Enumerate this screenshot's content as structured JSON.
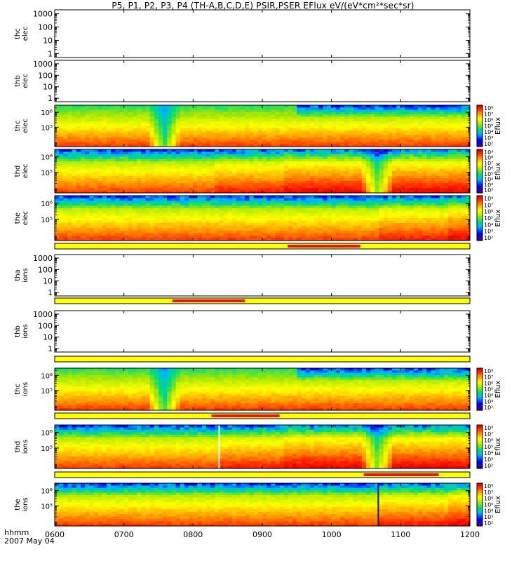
{
  "title": "P5, P1, P2, P3, P4 (TH-A,B,C,D,E) PSIR,PSER EFlux eV/(eV*cm²*sec*sr)",
  "footer": {
    "time_format": "hhmm",
    "date": "2007 May 04"
  },
  "colors": {
    "status_ok": "#ffff00",
    "status_flag": "#e8102a",
    "line": "#000000"
  },
  "chart_data": {
    "type": "heatmap",
    "title": "P5, P1, P2, P3, P4 (TH-A,B,C,D,E) PSIR,PSER EFlux eV/(eV*cm²*sec*sr)",
    "x_axis": {
      "range": [
        "0600",
        "1200"
      ],
      "ticks": [
        "0600",
        "0700",
        "0800",
        "0900",
        "1000",
        "1100",
        "1200"
      ],
      "label": "hhmm",
      "date": "2007 May 04"
    },
    "colorbar_label": "Eflux",
    "panels": [
      {
        "kind": "empty",
        "label": [
          "thc",
          "elec"
        ],
        "yticks": [
          "1000",
          "100",
          "10",
          "1"
        ],
        "ylim": [
          0.5,
          2000
        ]
      },
      {
        "kind": "empty",
        "label": [
          "thb",
          "elec"
        ],
        "yticks": [
          "1000",
          "100",
          "10",
          "1"
        ],
        "ylim": [
          0.5,
          2000
        ]
      },
      {
        "kind": "spectrogram",
        "label": [
          "thc",
          "elec"
        ],
        "yticks": [
          "10⁶",
          "10⁵"
        ],
        "ylim": [
          5000,
          3000000
        ],
        "colorbar_ticks": [
          "10⁸",
          "10⁷",
          "10⁶",
          "10⁵",
          "10⁴",
          "10³",
          "10²"
        ],
        "crange": [
          100,
          100000000
        ],
        "features": {
          "dips": [
            {
              "t": "0735",
              "width_min": 8
            }
          ],
          "speckle_from": "0930",
          "steps": []
        }
      },
      {
        "kind": "spectrogram",
        "label": [
          "thd",
          "elec"
        ],
        "yticks": [
          "10⁶",
          "10⁵"
        ],
        "ylim": [
          5000,
          3000000
        ],
        "colorbar_ticks": [
          "10⁹",
          "10⁸",
          "10⁷",
          "10⁶",
          "10⁵",
          "10⁴",
          "10³",
          "10²"
        ],
        "crange": [
          100,
          1000000000
        ],
        "features": {
          "dips": [
            {
              "t": "1040",
              "width_min": 8
            }
          ],
          "speckle_from": "0600",
          "steps": [
            "0820",
            "0920"
          ]
        }
      },
      {
        "kind": "spectrogram",
        "label": [
          "the",
          "elec"
        ],
        "yticks": [
          "10⁶",
          "10⁵"
        ],
        "ylim": [
          5000,
          3000000
        ],
        "colorbar_ticks": [
          "10⁸",
          "10⁷",
          "10⁶",
          "10⁵",
          "10⁴",
          "10³",
          "10²"
        ],
        "crange": [
          100,
          100000000
        ],
        "features": {
          "dips": [],
          "speckle_from": "0600",
          "steps": [
            "1040",
            "1140"
          ]
        }
      },
      {
        "kind": "empty",
        "label": [
          "tha",
          "ions"
        ],
        "yticks": [
          "1000",
          "100",
          "10",
          "1"
        ],
        "ylim": [
          0.5,
          2000
        ]
      },
      {
        "kind": "empty",
        "label": [
          "thb",
          "ions"
        ],
        "yticks": [
          "1000",
          "100",
          "10",
          "1"
        ],
        "ylim": [
          0.5,
          2000
        ]
      },
      {
        "kind": "spectrogram",
        "label": [
          "thc",
          "ions"
        ],
        "yticks": [
          "10⁶",
          "10⁵"
        ],
        "ylim": [
          5000,
          3000000
        ],
        "colorbar_ticks": [
          "10⁸",
          "10⁷",
          "10⁶",
          "10⁵",
          "10⁴",
          "10³",
          "10²"
        ],
        "crange": [
          100,
          100000000
        ],
        "features": {
          "dips": [
            {
              "t": "0735",
              "width_min": 8
            }
          ],
          "speckle_from": "0930",
          "steps": []
        }
      },
      {
        "kind": "spectrogram",
        "label": [
          "thd",
          "ions"
        ],
        "yticks": [
          "10⁶",
          "10⁵"
        ],
        "ylim": [
          5000,
          3000000
        ],
        "colorbar_ticks": [
          "10⁸",
          "10⁷",
          "10⁶",
          "10⁵",
          "10⁴",
          "10³",
          "10²"
        ],
        "crange": [
          100,
          100000000
        ],
        "features": {
          "dips": [
            {
              "t": "1040",
              "width_min": 8
            }
          ],
          "speckle_from": "0600",
          "steps": [
            "0822",
            "0920"
          ],
          "gap": "0822"
        }
      },
      {
        "kind": "spectrogram",
        "label": [
          "the",
          "ions"
        ],
        "yticks": [
          "10⁶",
          "10⁵"
        ],
        "ylim": [
          5000,
          3000000
        ],
        "colorbar_ticks": [
          "10⁸",
          "10⁷",
          "10⁶",
          "10⁵",
          "10⁴",
          "10³",
          "10²"
        ],
        "crange": [
          100,
          100000000
        ],
        "features": {
          "dips": [],
          "speckle_from": "0600",
          "steps": [
            "1040",
            "1140"
          ],
          "gap": "1040"
        }
      }
    ],
    "status_bars": [
      {
        "after_panel": 4,
        "flag_start": "0922",
        "flag_end": "1025"
      },
      {
        "after_panel": 5,
        "flag_start": "0742",
        "flag_end": "0845"
      },
      {
        "after_panel": 6,
        "flag_start": null,
        "flag_end": null
      },
      {
        "after_panel": 7,
        "flag_start": "0816",
        "flag_end": "0915"
      },
      {
        "after_panel": 8,
        "flag_start": "1028",
        "flag_end": "1133"
      }
    ]
  }
}
